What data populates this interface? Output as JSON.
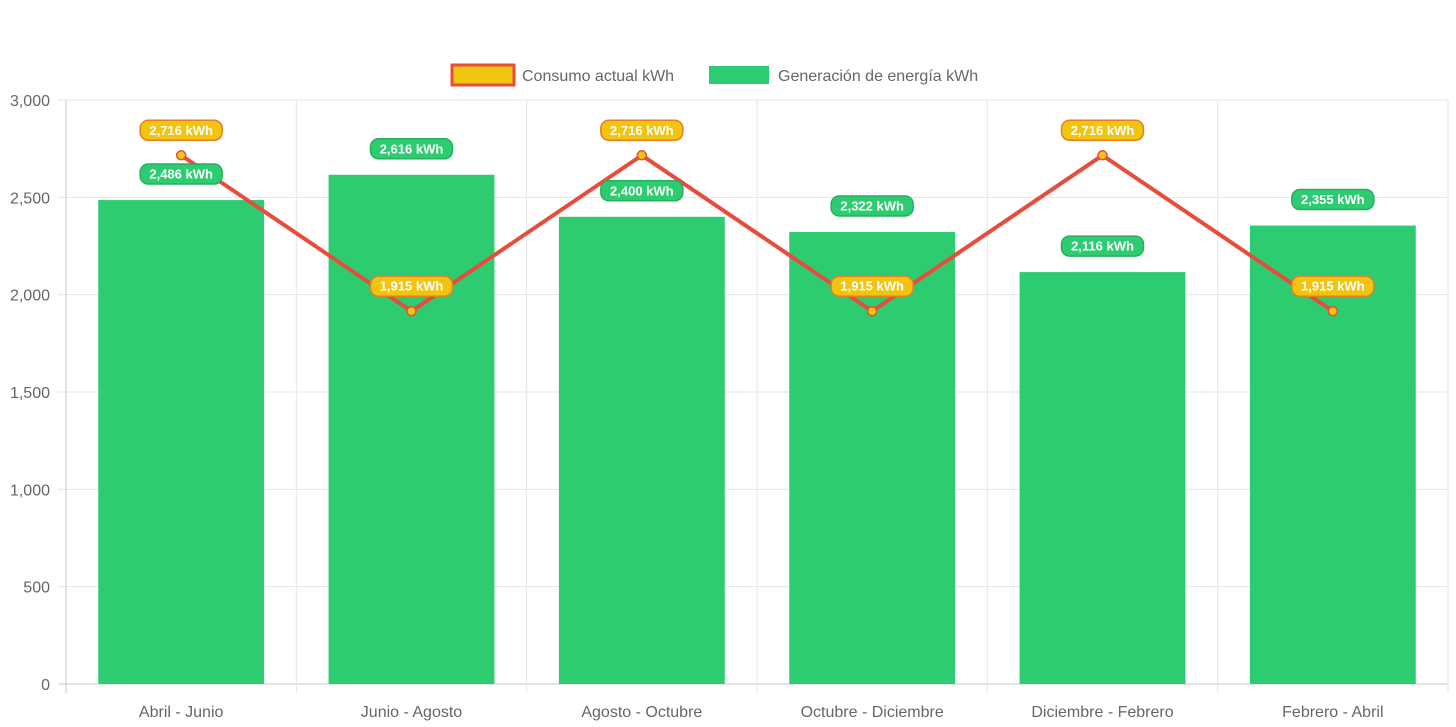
{
  "chart_data": {
    "type": "bar",
    "categories": [
      "Abril - Junio",
      "Junio - Agosto",
      "Agosto - Octubre",
      "Octubre - Diciembre",
      "Diciembre - Febrero",
      "Febrero - Abril"
    ],
    "series": [
      {
        "name": "Consumo actual kWh",
        "type": "line",
        "values": [
          2716,
          1915,
          2716,
          1915,
          2716,
          1915
        ],
        "labels": [
          "2,716 kWh",
          "1,915 kWh",
          "2,716 kWh",
          "1,915 kWh",
          "2,716 kWh",
          "1,915 kWh"
        ],
        "color": "#e74c3c",
        "fill": "#f1c40f"
      },
      {
        "name": "Generación de energía kWh",
        "type": "bar",
        "values": [
          2486,
          2616,
          2400,
          2322,
          2116,
          2355
        ],
        "labels": [
          "2,486 kWh",
          "2,616 kWh",
          "2,400 kWh",
          "2,322 kWh",
          "2,116 kWh",
          "2,355 kWh"
        ],
        "color": "#2ecc71"
      }
    ],
    "y_ticks": [
      "0",
      "500",
      "1,000",
      "1,500",
      "2,000",
      "2,500",
      "3,000"
    ],
    "ylim": [
      0,
      3000
    ],
    "grid": true,
    "legend": "top-center",
    "title": "",
    "xlabel": "",
    "ylabel": ""
  }
}
